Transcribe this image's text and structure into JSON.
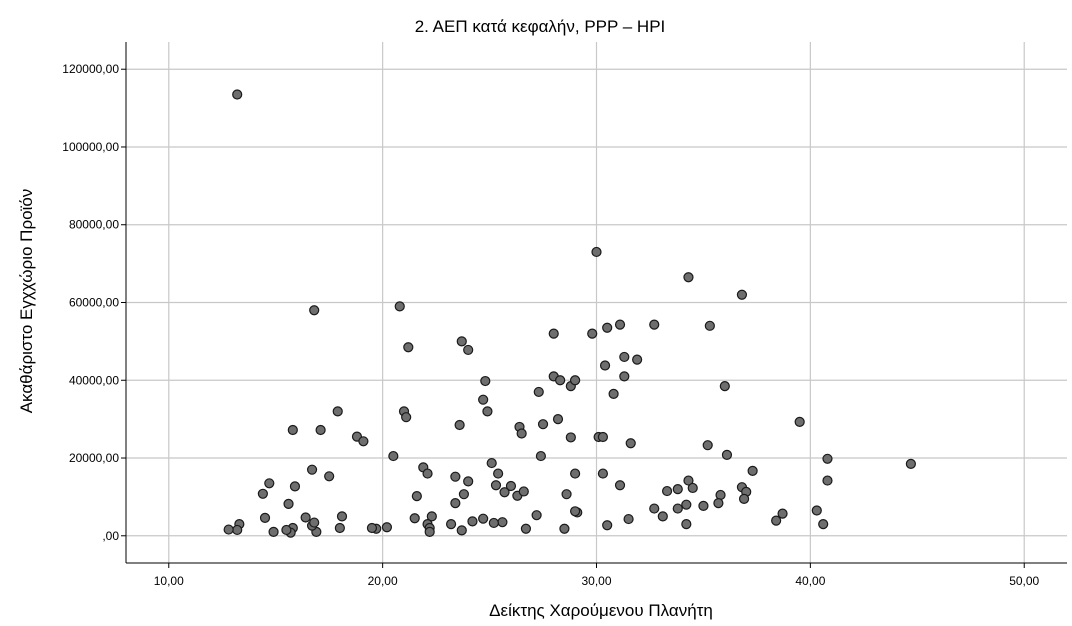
{
  "chart_data": {
    "type": "scatter",
    "title": "2. ΑΕΠ κατά κεφαλήν, PPP – HPI",
    "xlabel": "Δείκτης Χαρούμενου Πλανήτη",
    "ylabel": "Ακαθάριστο Εγχχώριο Προϊόν",
    "xlim": [
      8.0,
      52.0
    ],
    "ylim": [
      -7000,
      127000
    ],
    "x_ticks": [
      10,
      20,
      30,
      40,
      50
    ],
    "x_tick_labels": [
      "10,00",
      "20,00",
      "30,00",
      "40,00",
      "50,00"
    ],
    "y_ticks": [
      0,
      20000,
      40000,
      60000,
      80000,
      100000,
      120000
    ],
    "y_tick_labels": [
      ",00",
      "20000,00",
      "40000,00",
      "60000,00",
      "80000,00",
      "100000,00",
      "120000,00"
    ],
    "grid": true,
    "point_color": "#6e6e6e",
    "point_edge_color": "#1a1a1a",
    "points": [
      [
        13.2,
        113500
      ],
      [
        16.8,
        58000
      ],
      [
        20.8,
        59000
      ],
      [
        30.0,
        73000
      ],
      [
        34.3,
        66500
      ],
      [
        36.8,
        62000
      ],
      [
        21.2,
        48500
      ],
      [
        23.7,
        50000
      ],
      [
        24.0,
        47800
      ],
      [
        28.0,
        52000
      ],
      [
        29.8,
        52000
      ],
      [
        30.5,
        53500
      ],
      [
        31.1,
        54300
      ],
      [
        32.7,
        54300
      ],
      [
        35.3,
        54000
      ],
      [
        31.3,
        46000
      ],
      [
        31.9,
        45300
      ],
      [
        30.4,
        43800
      ],
      [
        31.3,
        41000
      ],
      [
        30.8,
        36500
      ],
      [
        36.0,
        38500
      ],
      [
        27.3,
        37000
      ],
      [
        28.0,
        41000
      ],
      [
        28.3,
        40000
      ],
      [
        28.8,
        38500
      ],
      [
        29.0,
        40000
      ],
      [
        24.8,
        39800
      ],
      [
        24.7,
        35000
      ],
      [
        24.9,
        32000
      ],
      [
        21.0,
        32000
      ],
      [
        21.1,
        30500
      ],
      [
        17.9,
        32000
      ],
      [
        23.6,
        28500
      ],
      [
        26.4,
        28000
      ],
      [
        26.5,
        26300
      ],
      [
        27.5,
        28700
      ],
      [
        28.2,
        30000
      ],
      [
        28.8,
        25300
      ],
      [
        30.1,
        25400
      ],
      [
        30.3,
        25400
      ],
      [
        31.6,
        23800
      ],
      [
        35.2,
        23300
      ],
      [
        36.1,
        20800
      ],
      [
        39.5,
        29300
      ],
      [
        40.8,
        19800
      ],
      [
        44.7,
        18500
      ],
      [
        15.8,
        27200
      ],
      [
        17.1,
        27200
      ],
      [
        18.8,
        25500
      ],
      [
        19.1,
        24300
      ],
      [
        20.5,
        20500
      ],
      [
        27.4,
        20500
      ],
      [
        25.1,
        18700
      ],
      [
        21.9,
        17600
      ],
      [
        22.1,
        16000
      ],
      [
        16.7,
        17000
      ],
      [
        17.5,
        15300
      ],
      [
        23.4,
        15200
      ],
      [
        24.0,
        14000
      ],
      [
        25.4,
        16000
      ],
      [
        26.0,
        12800
      ],
      [
        25.7,
        11200
      ],
      [
        26.3,
        10300
      ],
      [
        26.6,
        11400
      ],
      [
        29.0,
        16000
      ],
      [
        30.3,
        16000
      ],
      [
        31.1,
        13000
      ],
      [
        33.3,
        11500
      ],
      [
        33.8,
        12000
      ],
      [
        34.3,
        14200
      ],
      [
        34.5,
        12300
      ],
      [
        37.3,
        16700
      ],
      [
        36.8,
        12500
      ],
      [
        37.0,
        11300
      ],
      [
        40.8,
        14200
      ],
      [
        14.7,
        13500
      ],
      [
        14.4,
        10800
      ],
      [
        15.9,
        12700
      ],
      [
        21.6,
        10200
      ],
      [
        23.8,
        10700
      ],
      [
        25.3,
        13000
      ],
      [
        28.6,
        10700
      ],
      [
        35.8,
        10500
      ],
      [
        36.9,
        9500
      ],
      [
        35.7,
        8400
      ],
      [
        35.0,
        7700
      ],
      [
        34.2,
        8000
      ],
      [
        33.8,
        7000
      ],
      [
        32.7,
        7000
      ],
      [
        33.1,
        5000
      ],
      [
        38.4,
        3900
      ],
      [
        38.7,
        5700
      ],
      [
        40.3,
        6500
      ],
      [
        40.6,
        3000
      ],
      [
        34.2,
        3000
      ],
      [
        31.5,
        4300
      ],
      [
        30.5,
        2700
      ],
      [
        29.1,
        6000
      ],
      [
        29.0,
        6300
      ],
      [
        28.5,
        1800
      ],
      [
        27.2,
        5300
      ],
      [
        26.7,
        1800
      ],
      [
        25.6,
        3500
      ],
      [
        25.2,
        3300
      ],
      [
        24.7,
        4400
      ],
      [
        24.2,
        3700
      ],
      [
        23.7,
        1400
      ],
      [
        23.4,
        8400
      ],
      [
        23.2,
        3000
      ],
      [
        22.3,
        5000
      ],
      [
        22.1,
        3000
      ],
      [
        22.2,
        2000
      ],
      [
        22.2,
        1000
      ],
      [
        21.5,
        4500
      ],
      [
        20.2,
        2200
      ],
      [
        19.7,
        1800
      ],
      [
        19.5,
        2000
      ],
      [
        18.0,
        2000
      ],
      [
        18.1,
        5000
      ],
      [
        16.9,
        1000
      ],
      [
        16.7,
        2600
      ],
      [
        16.8,
        3400
      ],
      [
        16.4,
        4700
      ],
      [
        15.8,
        2000
      ],
      [
        15.7,
        800
      ],
      [
        15.5,
        1500
      ],
      [
        15.6,
        8200
      ],
      [
        14.9,
        1000
      ],
      [
        14.5,
        4600
      ],
      [
        13.3,
        3000
      ],
      [
        13.2,
        1500
      ],
      [
        12.8,
        1600
      ]
    ]
  }
}
